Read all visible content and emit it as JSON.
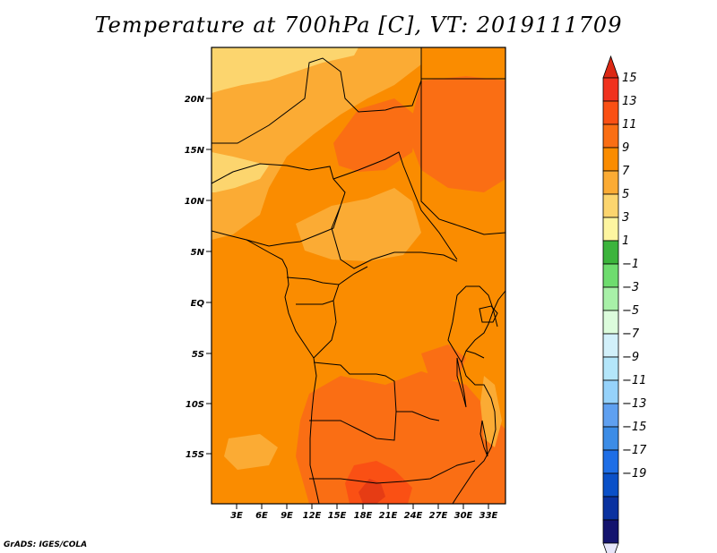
{
  "title": "Temperature at 700hPa [C], VT: 2019111709",
  "credit": "GrADS: IGES/COLA",
  "map": {
    "lat_ticks": [
      "20N",
      "15N",
      "10N",
      "5N",
      "EQ",
      "5S",
      "10S",
      "15S"
    ],
    "lon_ticks": [
      "3E",
      "6E",
      "9E",
      "12E",
      "15E",
      "18E",
      "21E",
      "24E",
      "27E",
      "30E",
      "33E"
    ]
  },
  "colorbar": {
    "levels": [
      "15",
      "13",
      "11",
      "9",
      "7",
      "5",
      "3",
      "1",
      "−1",
      "−3",
      "−5",
      "−7",
      "−9",
      "−11",
      "−13",
      "−15",
      "−17",
      "−19"
    ],
    "colors": [
      "#f0321e",
      "#fa5014",
      "#fa6e14",
      "#fa8c00",
      "#fbab34",
      "#fcd56e",
      "#fdf5a0",
      "#3cb43c",
      "#6edc6e",
      "#a8f0a8",
      "#dcfcdc",
      "#d2f0fa",
      "#b4e6fa",
      "#96d2fa",
      "#5fa0f0",
      "#3c8ce6",
      "#1e6ee6",
      "#0a50c8",
      "#0a32a0",
      "#14146e"
    ],
    "top_color": "#dc2814",
    "bottom_color": "#e6e6fa"
  }
}
